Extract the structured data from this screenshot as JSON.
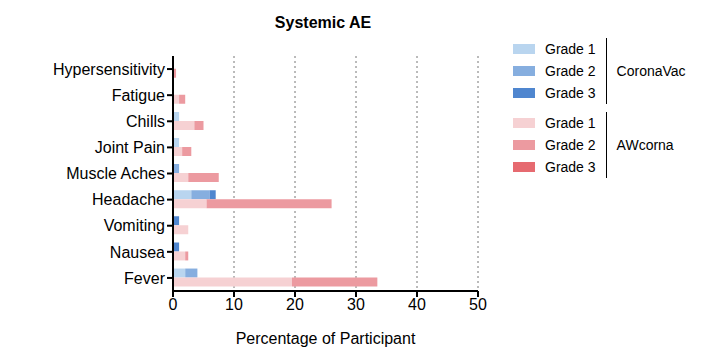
{
  "chart_data": {
    "type": "bar",
    "title": "Systemic AE",
    "orientation": "horizontal",
    "stacked": true,
    "grid": true,
    "legend": "right",
    "x_label": "Percentage of Participant",
    "categories": [
      "Hypersensitivity",
      "Fatigue",
      "Chills",
      "Joint  Pain",
      "Muscle Aches",
      "Headache",
      "Vomiting",
      "Nausea",
      "Fever"
    ],
    "xlim": [
      0,
      50
    ],
    "xticks": [
      0,
      10,
      20,
      30,
      40,
      50
    ],
    "series": [
      {
        "name": "Grade 1",
        "group": "CoronaVac",
        "color": "#b9d5ef",
        "values": [
          0,
          0,
          1,
          1,
          0,
          3,
          0,
          0,
          2
        ]
      },
      {
        "name": "Grade 2",
        "group": "CoronaVac",
        "color": "#86aedf",
        "values": [
          0,
          0,
          0,
          0,
          1,
          3,
          0,
          0,
          2
        ]
      },
      {
        "name": "Grade 3",
        "group": "CoronaVac",
        "color": "#4f86cf",
        "values": [
          0,
          0,
          0,
          0,
          0,
          1,
          1,
          1,
          0
        ]
      },
      {
        "name": "Grade 1",
        "group": "AWcorna",
        "color": "#f6d1d3",
        "values": [
          0,
          1,
          3.5,
          1.5,
          2.5,
          5.5,
          2.5,
          2,
          19.5
        ]
      },
      {
        "name": "Grade 2",
        "group": "AWcorna",
        "color": "#ec9aa0",
        "values": [
          0.5,
          1,
          1.5,
          1.5,
          5,
          20.5,
          0,
          0.5,
          14
        ]
      },
      {
        "name": "Grade 3",
        "group": "AWcorna",
        "color": "#e66a70",
        "values": [
          0,
          0,
          0,
          0,
          0,
          0,
          0,
          0,
          0
        ]
      }
    ]
  }
}
